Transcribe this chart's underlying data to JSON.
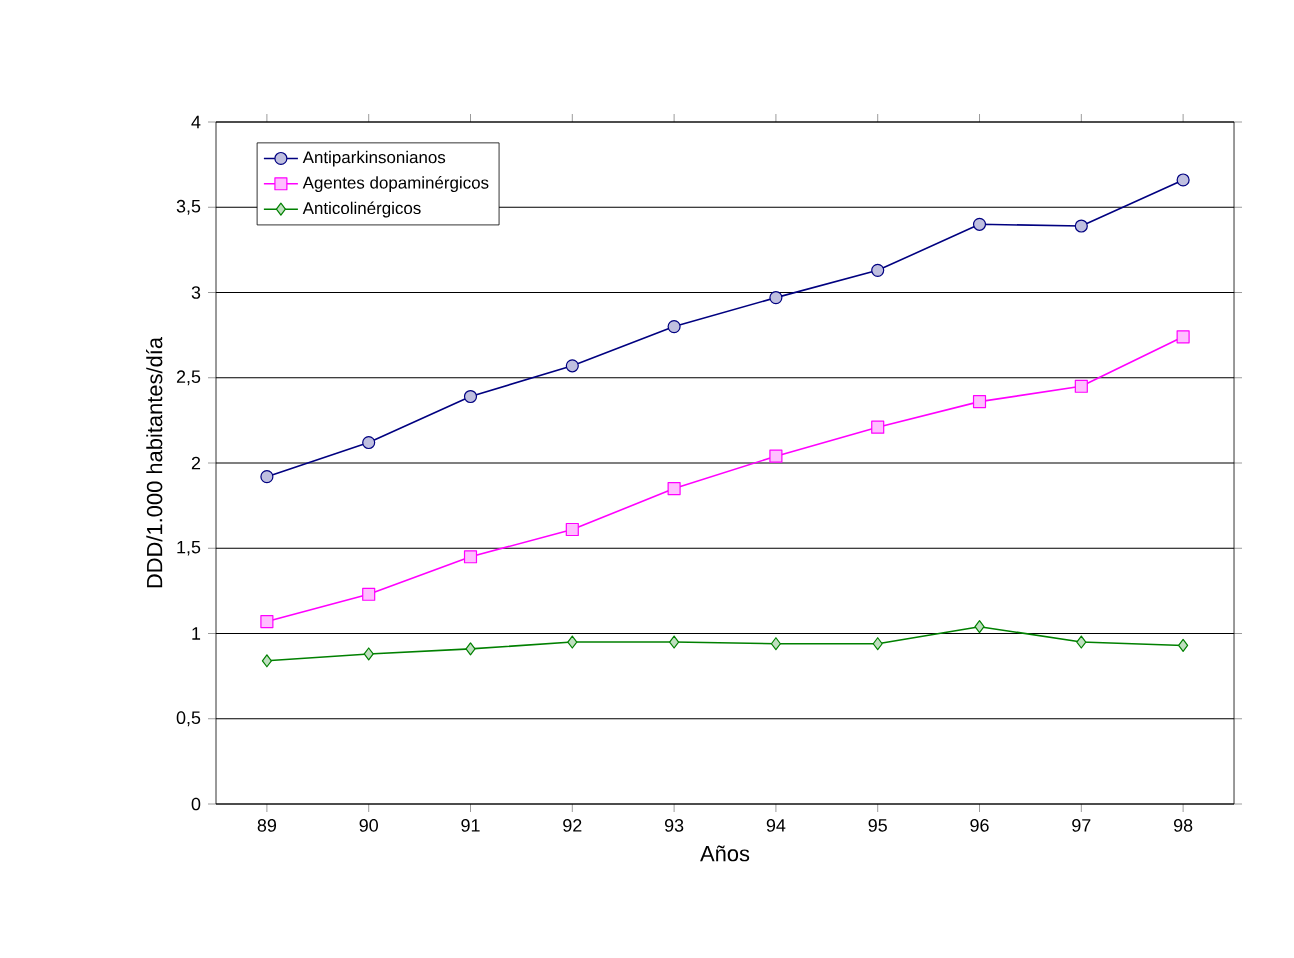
{
  "chart_data": {
    "type": "line",
    "xlabel": "Años",
    "ylabel": "DDD/1.000 habitantes/día",
    "categories": [
      "89",
      "90",
      "91",
      "92",
      "93",
      "94",
      "95",
      "96",
      "97",
      "98"
    ],
    "series": [
      {
        "name": "Antiparkinsonianos",
        "color": "#000080",
        "marker": "circle",
        "values": [
          1.92,
          2.12,
          2.39,
          2.57,
          2.8,
          2.97,
          3.13,
          3.4,
          3.39,
          3.66
        ]
      },
      {
        "name": "Agentes dopaminérgicos",
        "color": "#ff00ff",
        "marker": "square",
        "values": [
          1.07,
          1.23,
          1.45,
          1.61,
          1.85,
          2.04,
          2.21,
          2.36,
          2.45,
          2.74
        ]
      },
      {
        "name": "Anticolinérgicos",
        "color": "#008000",
        "marker": "diamond",
        "values": [
          0.84,
          0.88,
          0.91,
          0.95,
          0.95,
          0.94,
          0.94,
          1.04,
          0.95,
          0.93
        ]
      }
    ],
    "ylim": [
      0,
      4
    ],
    "yticks": [
      0,
      {
        "value": 0.5,
        "label": "0,5"
      },
      1,
      {
        "value": 1.5,
        "label": "1,5"
      },
      2,
      {
        "value": 2.5,
        "label": "2,5"
      },
      3,
      {
        "value": 3.5,
        "label": "3,5"
      },
      4
    ],
    "grid": "y",
    "legend": "top left",
    "line_style": "solid"
  }
}
